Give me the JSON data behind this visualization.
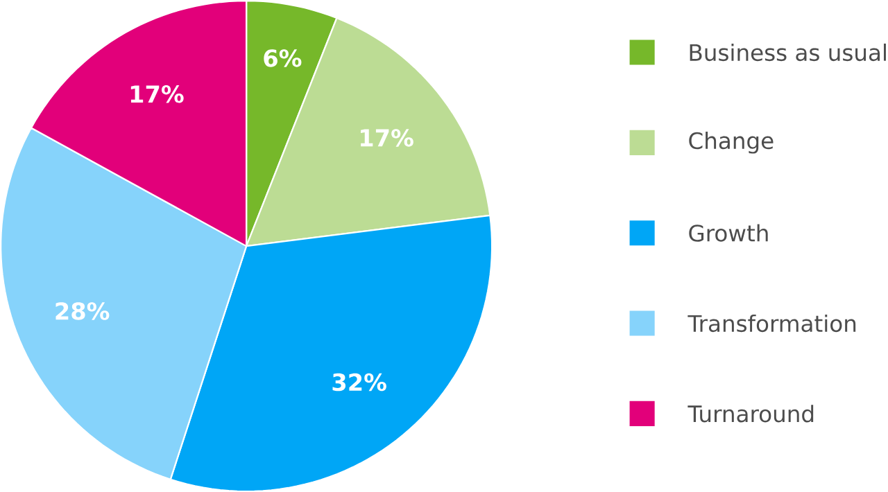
{
  "chart_data": {
    "type": "pie",
    "categories": [
      "Business as usual",
      "Change",
      "Growth",
      "Transformation",
      "Turnaround"
    ],
    "values": [
      6,
      17,
      32,
      28,
      17
    ],
    "colors": [
      "#76b82a",
      "#bcdc94",
      "#00a6f6",
      "#86d3fb",
      "#e2007a"
    ],
    "value_labels": [
      "6%",
      "17%",
      "32%",
      "28%",
      "17%"
    ],
    "legend": "right"
  }
}
